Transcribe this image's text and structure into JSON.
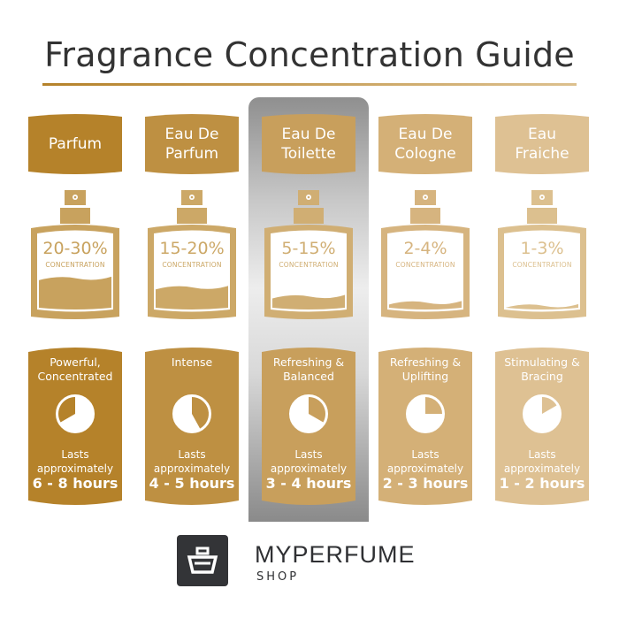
{
  "title": "Fragrance Concentration Guide",
  "columns": [
    {
      "name": "Parfum",
      "percent": "20-30%",
      "concentration_label": "CONCENTRATION",
      "description": "Powerful, Concentrated",
      "lasts_label": "Lasts approximately",
      "hours": "6 - 8 hours",
      "color": "#b5822a",
      "bottle_color": "#c8a25e",
      "liquid_level": 0.42,
      "pie_white_fraction": 0.667,
      "pie_direction": "ccw",
      "highlighted": false
    },
    {
      "name": "Eau De Parfum",
      "percent": "15-20%",
      "concentration_label": "CONCENTRATION",
      "description": "Intense",
      "lasts_label": "Lasts approximately",
      "hours": "4 - 5 hours",
      "color": "#be9042",
      "bottle_color": "#cca867",
      "liquid_level": 0.3,
      "pie_white_fraction": 0.58,
      "pie_direction": "cw",
      "highlighted": false
    },
    {
      "name": "Eau De Toilette",
      "percent": "5-15%",
      "concentration_label": "CONCENTRATION",
      "description": "Refreshing & Balanced",
      "lasts_label": "Lasts approximately",
      "hours": "3 - 4 hours",
      "color": "#c89f5c",
      "bottle_color": "#d0ae73",
      "liquid_level": 0.18,
      "pie_white_fraction": 0.667,
      "pie_direction": "cw",
      "highlighted": true
    },
    {
      "name": "Eau De Cologne",
      "percent": "2-4%",
      "concentration_label": "CONCENTRATION",
      "description": "Refreshing & Uplifting",
      "lasts_label": "Lasts approximately",
      "hours": "2 - 3 hours",
      "color": "#d4b077",
      "bottle_color": "#d6b47f",
      "liquid_level": 0.1,
      "pie_white_fraction": 0.75,
      "pie_direction": "cw",
      "highlighted": false
    },
    {
      "name": "Eau Fraiche",
      "percent": "1-3%",
      "concentration_label": "CONCENTRATION",
      "description": "Stimulating & Bracing",
      "lasts_label": "Lasts approximately",
      "hours": "1 - 2 hours",
      "color": "#dec193",
      "bottle_color": "#dcc08f",
      "liquid_level": 0.06,
      "pie_white_fraction": 0.833,
      "pie_direction": "cw",
      "highlighted": false
    }
  ],
  "logo": {
    "brand": "MYPERFUME",
    "sub": "SHOP"
  }
}
